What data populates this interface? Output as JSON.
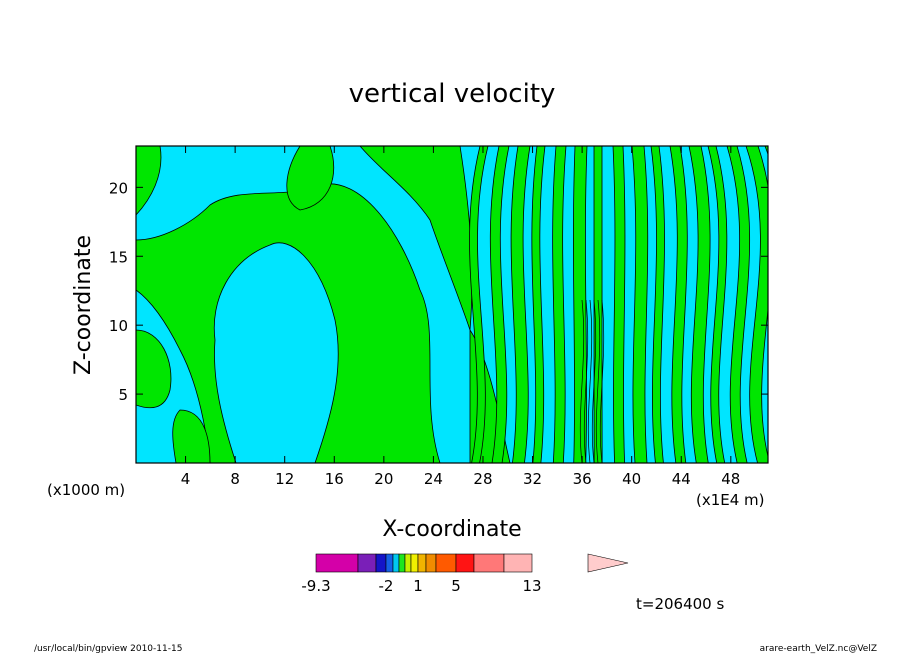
{
  "chart_data": {
    "type": "heatmap",
    "title": "vertical velocity",
    "xlabel": "X-coordinate",
    "ylabel": "Z-coordinate",
    "x_unit_label": "(x1E4 m)",
    "y_unit_label": "(x1000 m)",
    "xlim": [
      0,
      51
    ],
    "ylim": [
      0,
      23
    ],
    "x_ticks": [
      4,
      8,
      12,
      16,
      20,
      24,
      28,
      32,
      36,
      40,
      44,
      48
    ],
    "y_ticks": [
      5,
      10,
      15,
      20
    ],
    "grid": false,
    "time_label": "t=206400 s",
    "footer_left": "/usr/local/bin/gpview   2010-11-15",
    "footer_right": "arare-earth_VelZ.nc@VelZ",
    "colorbar": {
      "tick_labels": [
        {
          "label": "-9.3",
          "value": -9.3
        },
        {
          "label": "-2",
          "value": -2
        },
        {
          "label": "1",
          "value": 1
        },
        {
          "label": "5",
          "value": 5
        },
        {
          "label": "13",
          "value": 13
        }
      ],
      "levels": [
        -9.3,
        -6,
        -4,
        -3,
        -2,
        -1,
        0,
        1,
        2,
        3,
        5,
        7,
        9,
        13,
        19
      ],
      "colors": [
        "#d400a8",
        "#7a1fb8",
        "#1414c8",
        "#1460e6",
        "#00c8f0",
        "#1ee61e",
        "#c8f000",
        "#f0f000",
        "#f0b400",
        "#f08c00",
        "#ff5a00",
        "#ff1414",
        "#ff7878",
        "#ffb4b4",
        "#ffcccc"
      ]
    },
    "field_colors": {
      "negative": "#00e5ff",
      "positive": "#00e600",
      "contour": "#000000"
    }
  }
}
